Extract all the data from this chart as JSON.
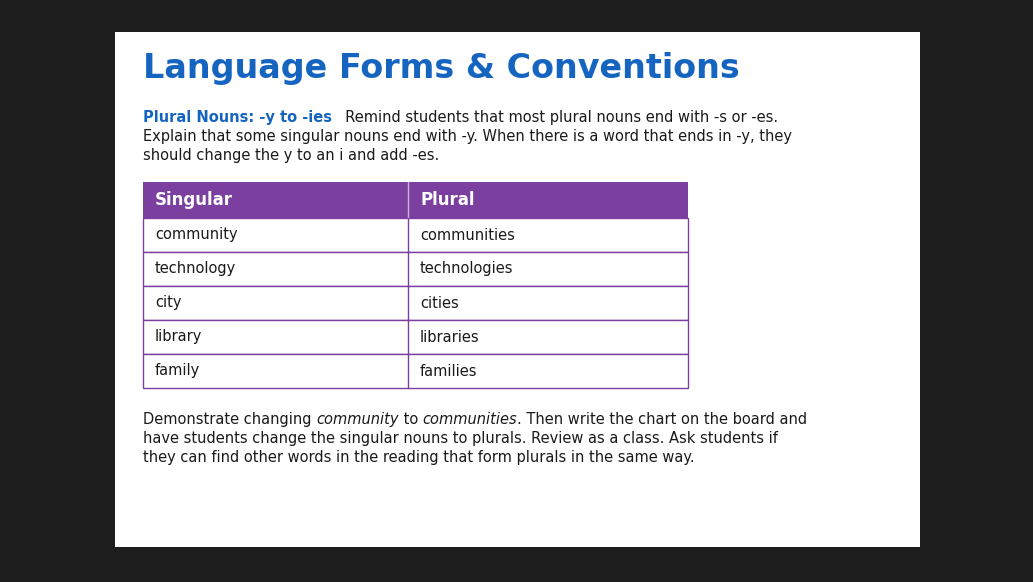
{
  "title": "Language Forms & Conventions",
  "title_color": "#1565C0",
  "title_fontsize": 24,
  "subtitle_bold_part": "Plural Nouns: -y to -ies",
  "subtitle_bold_color": "#1565C0",
  "subtitle_line1_rest": "  Remind students that most plural nouns end with -s or -es.",
  "subtitle_line2": "Explain that some singular nouns end with -y. When there is a word that ends in -y, they",
  "subtitle_line3": "should change the y to an i and add -es.",
  "table_header": [
    "Singular",
    "Plural"
  ],
  "table_rows": [
    [
      "community",
      "communities"
    ],
    [
      "technology",
      "technologies"
    ],
    [
      "city",
      "cities"
    ],
    [
      "library",
      "libraries"
    ],
    [
      "family",
      "families"
    ]
  ],
  "table_header_bg": "#7B3FA0",
  "table_header_fg": "#ffffff",
  "table_border_color": "#7B3FA0",
  "table_row_bg": "#ffffff",
  "table_text_color": "#1a1a1a",
  "footer_line1_parts": [
    [
      "Demonstrate changing ",
      false
    ],
    [
      "community",
      true
    ],
    [
      " to ",
      false
    ],
    [
      "communities",
      true
    ],
    [
      ". Then write the chart on the board and",
      false
    ]
  ],
  "footer_line2": "have students change the singular nouns to plurals. Review as a class. Ask students if",
  "footer_line3": "they can find other words in the reading that form plurals in the same way.",
  "bg_color": "#ffffff",
  "outer_bg": "#1e1e1e",
  "card_bg": "#ffffff"
}
